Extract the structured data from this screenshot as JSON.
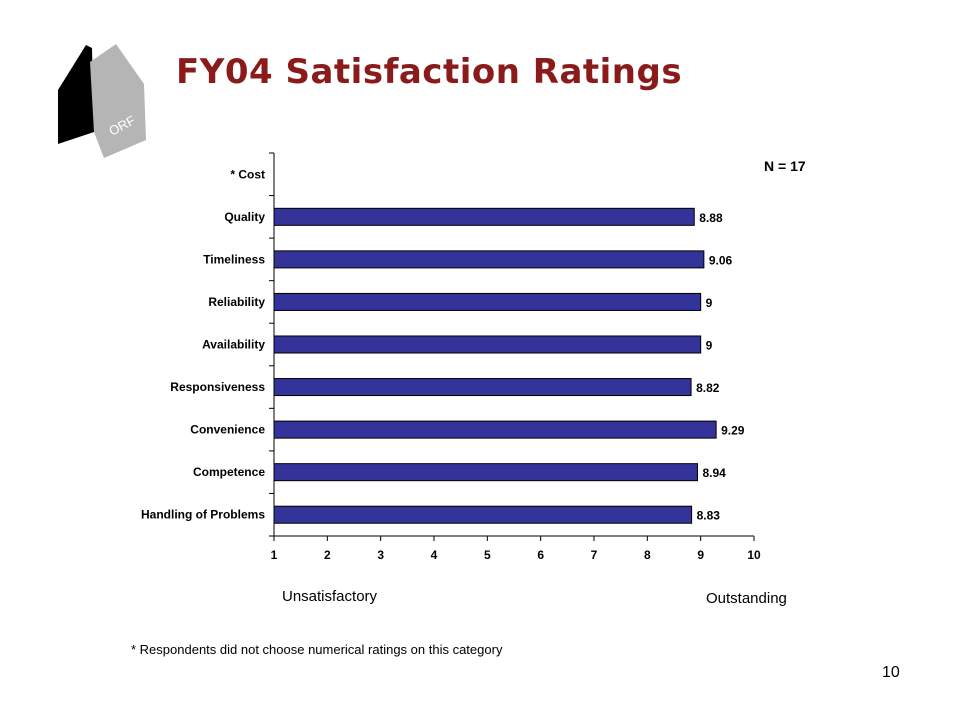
{
  "logo": {
    "text": "ORF"
  },
  "title": "FY04 Satisfaction Ratings",
  "n_label": "N = 17",
  "scale": {
    "low": "Unsatisfactory",
    "high": "Outstanding"
  },
  "footnote": "* Respondents did not choose numerical ratings on this category",
  "page_number": "10",
  "colors": {
    "bar_fill": "#333399",
    "bar_stroke": "#000000",
    "title": "#8b1a1a"
  },
  "chart_data": {
    "type": "bar",
    "orientation": "horizontal",
    "categories": [
      "* Cost",
      "Quality",
      "Timeliness",
      "Reliability",
      "Availability",
      "Responsiveness",
      "Convenience",
      "Competence",
      "Handling of Problems"
    ],
    "values": [
      null,
      8.88,
      9.06,
      9,
      9,
      8.82,
      9.29,
      8.94,
      8.83
    ],
    "value_labels": [
      "",
      "8.88",
      "9.06",
      "9",
      "9",
      "8.82",
      "9.29",
      "8.94",
      "8.83"
    ],
    "xlim": [
      1,
      10
    ],
    "xticks": [
      "1",
      "2",
      "3",
      "4",
      "5",
      "6",
      "7",
      "8",
      "9",
      "10"
    ],
    "grid": false,
    "legend": "none"
  }
}
